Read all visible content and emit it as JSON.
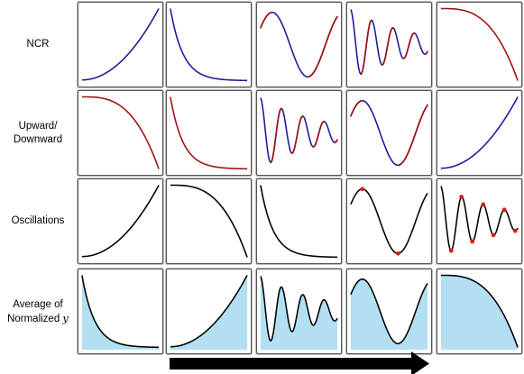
{
  "rows": [
    {
      "label_lines": [
        "NCR"
      ],
      "cells": [
        {
          "curve": "grow",
          "color": "#1a1a9a",
          "fill": false,
          "dots": false
        },
        {
          "curve": "decay",
          "color": "#1a1a9a",
          "fill": false,
          "dots": false
        },
        {
          "curve": "sine",
          "color": "#1a1a9a",
          "overlay_color": "#a01010",
          "fill": false,
          "dots": false
        },
        {
          "curve": "damped",
          "color": "#1a1a9a",
          "overlay_color": "#a01010",
          "fill": false,
          "dots": false
        },
        {
          "curve": "drop",
          "color": "#a01010",
          "fill": false,
          "dots": false
        }
      ]
    },
    {
      "label_lines": [
        "Upward/",
        "Downward"
      ],
      "cells": [
        {
          "curve": "drop",
          "color": "#a01010",
          "fill": false,
          "dots": false
        },
        {
          "curve": "decay",
          "color": "#a01010",
          "fill": false,
          "dots": false
        },
        {
          "curve": "damped",
          "color": "#1a1a9a",
          "overlay_color": "#a01010",
          "fill": false,
          "dots": false
        },
        {
          "curve": "sine",
          "color": "#1a1a9a",
          "overlay_color": "#a01010",
          "fill": false,
          "dots": false
        },
        {
          "curve": "grow",
          "color": "#1a1a9a",
          "fill": false,
          "dots": false
        }
      ]
    },
    {
      "label_lines": [
        "Oscillations"
      ],
      "cells": [
        {
          "curve": "grow",
          "color": "#000000",
          "fill": false,
          "dots": false
        },
        {
          "curve": "drop",
          "color": "#000000",
          "fill": false,
          "dots": false
        },
        {
          "curve": "decay",
          "color": "#000000",
          "fill": false,
          "dots": false
        },
        {
          "curve": "sine",
          "color": "#000000",
          "fill": false,
          "dots": true
        },
        {
          "curve": "damped",
          "color": "#000000",
          "fill": false,
          "dots": true
        }
      ]
    },
    {
      "label_lines": [
        "Average of",
        "Normalized "
      ],
      "label_var": "y",
      "cells": [
        {
          "curve": "decay",
          "color": "#000000",
          "fill": true,
          "dots": false
        },
        {
          "curve": "grow",
          "color": "#000000",
          "fill": true,
          "dots": false
        },
        {
          "curve": "damped",
          "color": "#000000",
          "fill": true,
          "dots": false
        },
        {
          "curve": "sine",
          "color": "#000000",
          "fill": true,
          "dots": false
        },
        {
          "curve": "drop",
          "color": "#000000",
          "fill": true,
          "dots": false
        }
      ]
    }
  ],
  "colors": {
    "upward": "#1a1a9a",
    "downward": "#a01010",
    "neutral": "#000000",
    "area_fill": "#b3dff3",
    "extrema_dot": "#e01818",
    "arrow": "#000000"
  },
  "arrow_direction": "right"
}
